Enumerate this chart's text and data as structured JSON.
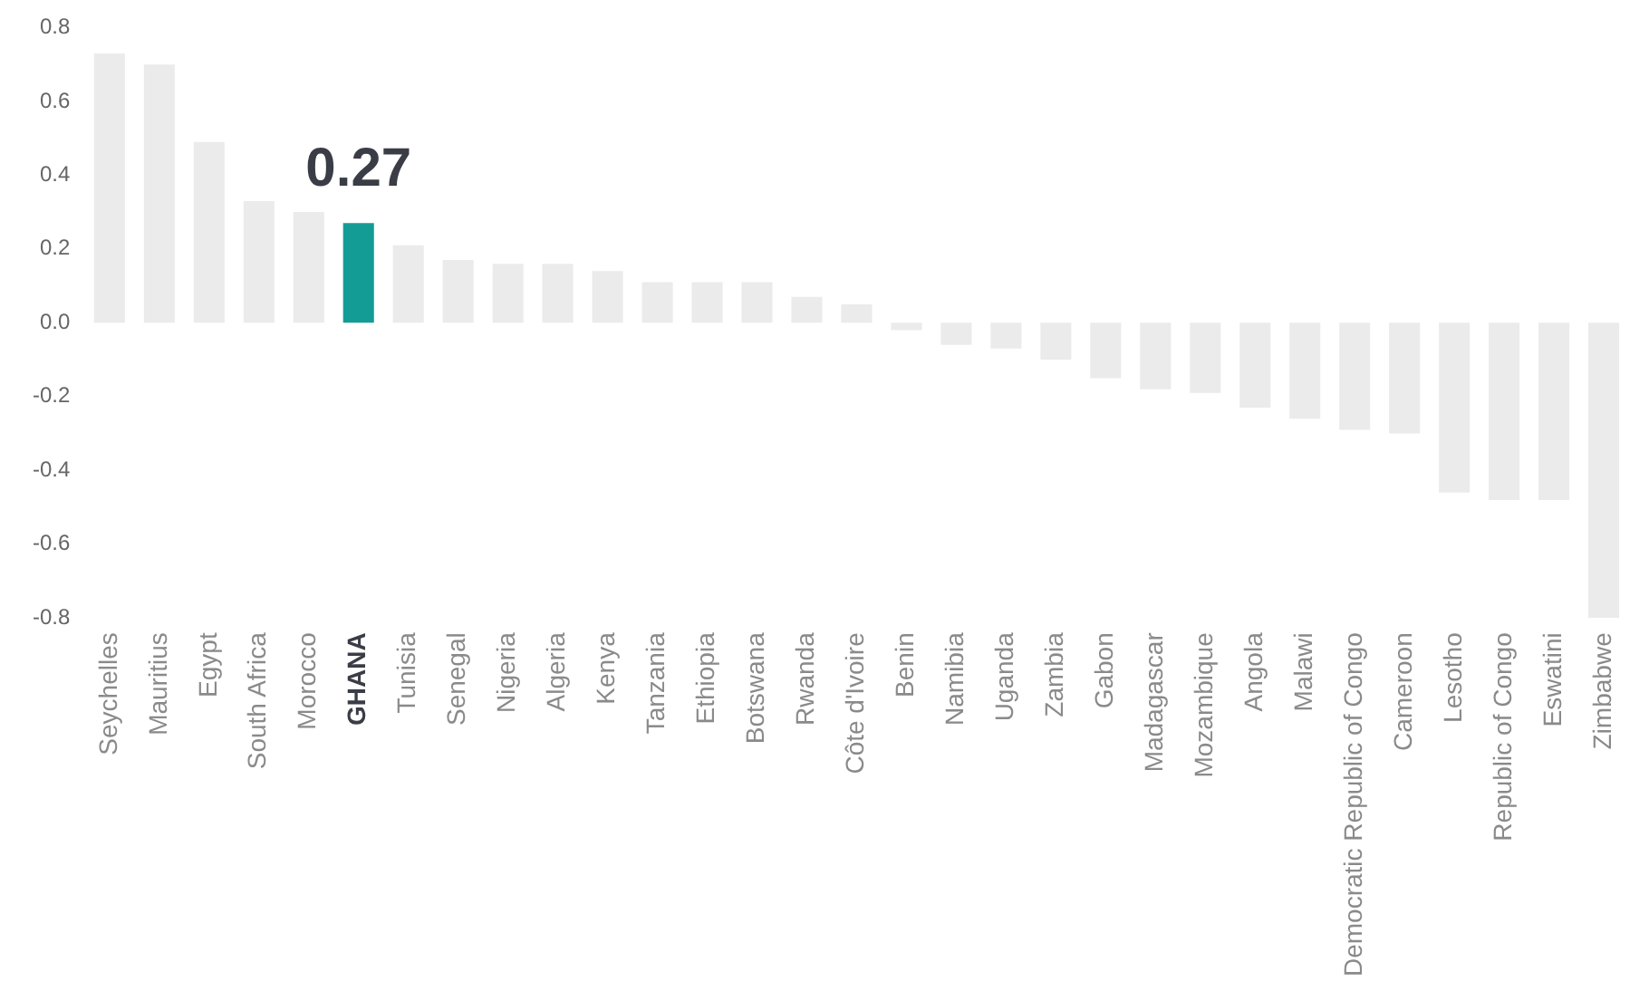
{
  "chart_data": {
    "type": "bar",
    "categories": [
      "Seychelles",
      "Mauritius",
      "Egypt",
      "South Africa",
      "Morocco",
      "GHANA",
      "Tunisia",
      "Senegal",
      "Nigeria",
      "Algeria",
      "Kenya",
      "Tanzania",
      "Ethiopia",
      "Botswana",
      "Rwanda",
      "Côte d'Ivoire",
      "Benin",
      "Namibia",
      "Uganda",
      "Zambia",
      "Gabon",
      "Madagascar",
      "Mozambique",
      "Angola",
      "Malawi",
      "Democratic Republic of Congo",
      "Cameroon",
      "Lesotho",
      "Republic of Congo",
      "Eswatini",
      "Zimbabwe"
    ],
    "values": [
      0.73,
      0.7,
      0.49,
      0.33,
      0.3,
      0.27,
      0.21,
      0.17,
      0.16,
      0.16,
      0.14,
      0.11,
      0.11,
      0.11,
      0.07,
      0.05,
      -0.02,
      -0.06,
      -0.07,
      -0.1,
      -0.15,
      -0.18,
      -0.19,
      -0.23,
      -0.26,
      -0.29,
      -0.3,
      -0.46,
      -0.48,
      -0.48,
      -0.8
    ],
    "colors": [
      "#ebebeb",
      "#ebebeb",
      "#ebebeb",
      "#ebebeb",
      "#ebebeb",
      "#139c95",
      "#ebebeb",
      "#ebebeb",
      "#ebebeb",
      "#ebebeb",
      "#ebebeb",
      "#ebebeb",
      "#ebebeb",
      "#ebebeb",
      "#ebebeb",
      "#ebebeb",
      "#ebebeb",
      "#ebebeb",
      "#ebebeb",
      "#ebebeb",
      "#ebebeb",
      "#ebebeb",
      "#ebebeb",
      "#ebebeb",
      "#ebebeb",
      "#ebebeb",
      "#ebebeb",
      "#ebebeb",
      "#ebebeb",
      "#ebebeb",
      "#ebebeb"
    ],
    "value_labels": [
      null,
      null,
      null,
      null,
      null,
      "0.27",
      null,
      null,
      null,
      null,
      null,
      null,
      null,
      null,
      null,
      null,
      null,
      null,
      null,
      null,
      null,
      null,
      null,
      null,
      null,
      null,
      null,
      null,
      null,
      null,
      null
    ],
    "ylim": [
      -0.8,
      0.8
    ],
    "yticks": [
      0.8,
      0.6,
      0.4,
      0.2,
      {
        "value": 0,
        "label": "0.0"
      },
      -0.2,
      -0.4,
      -0.6,
      -0.8
    ],
    "grid": false,
    "legend": false
  }
}
